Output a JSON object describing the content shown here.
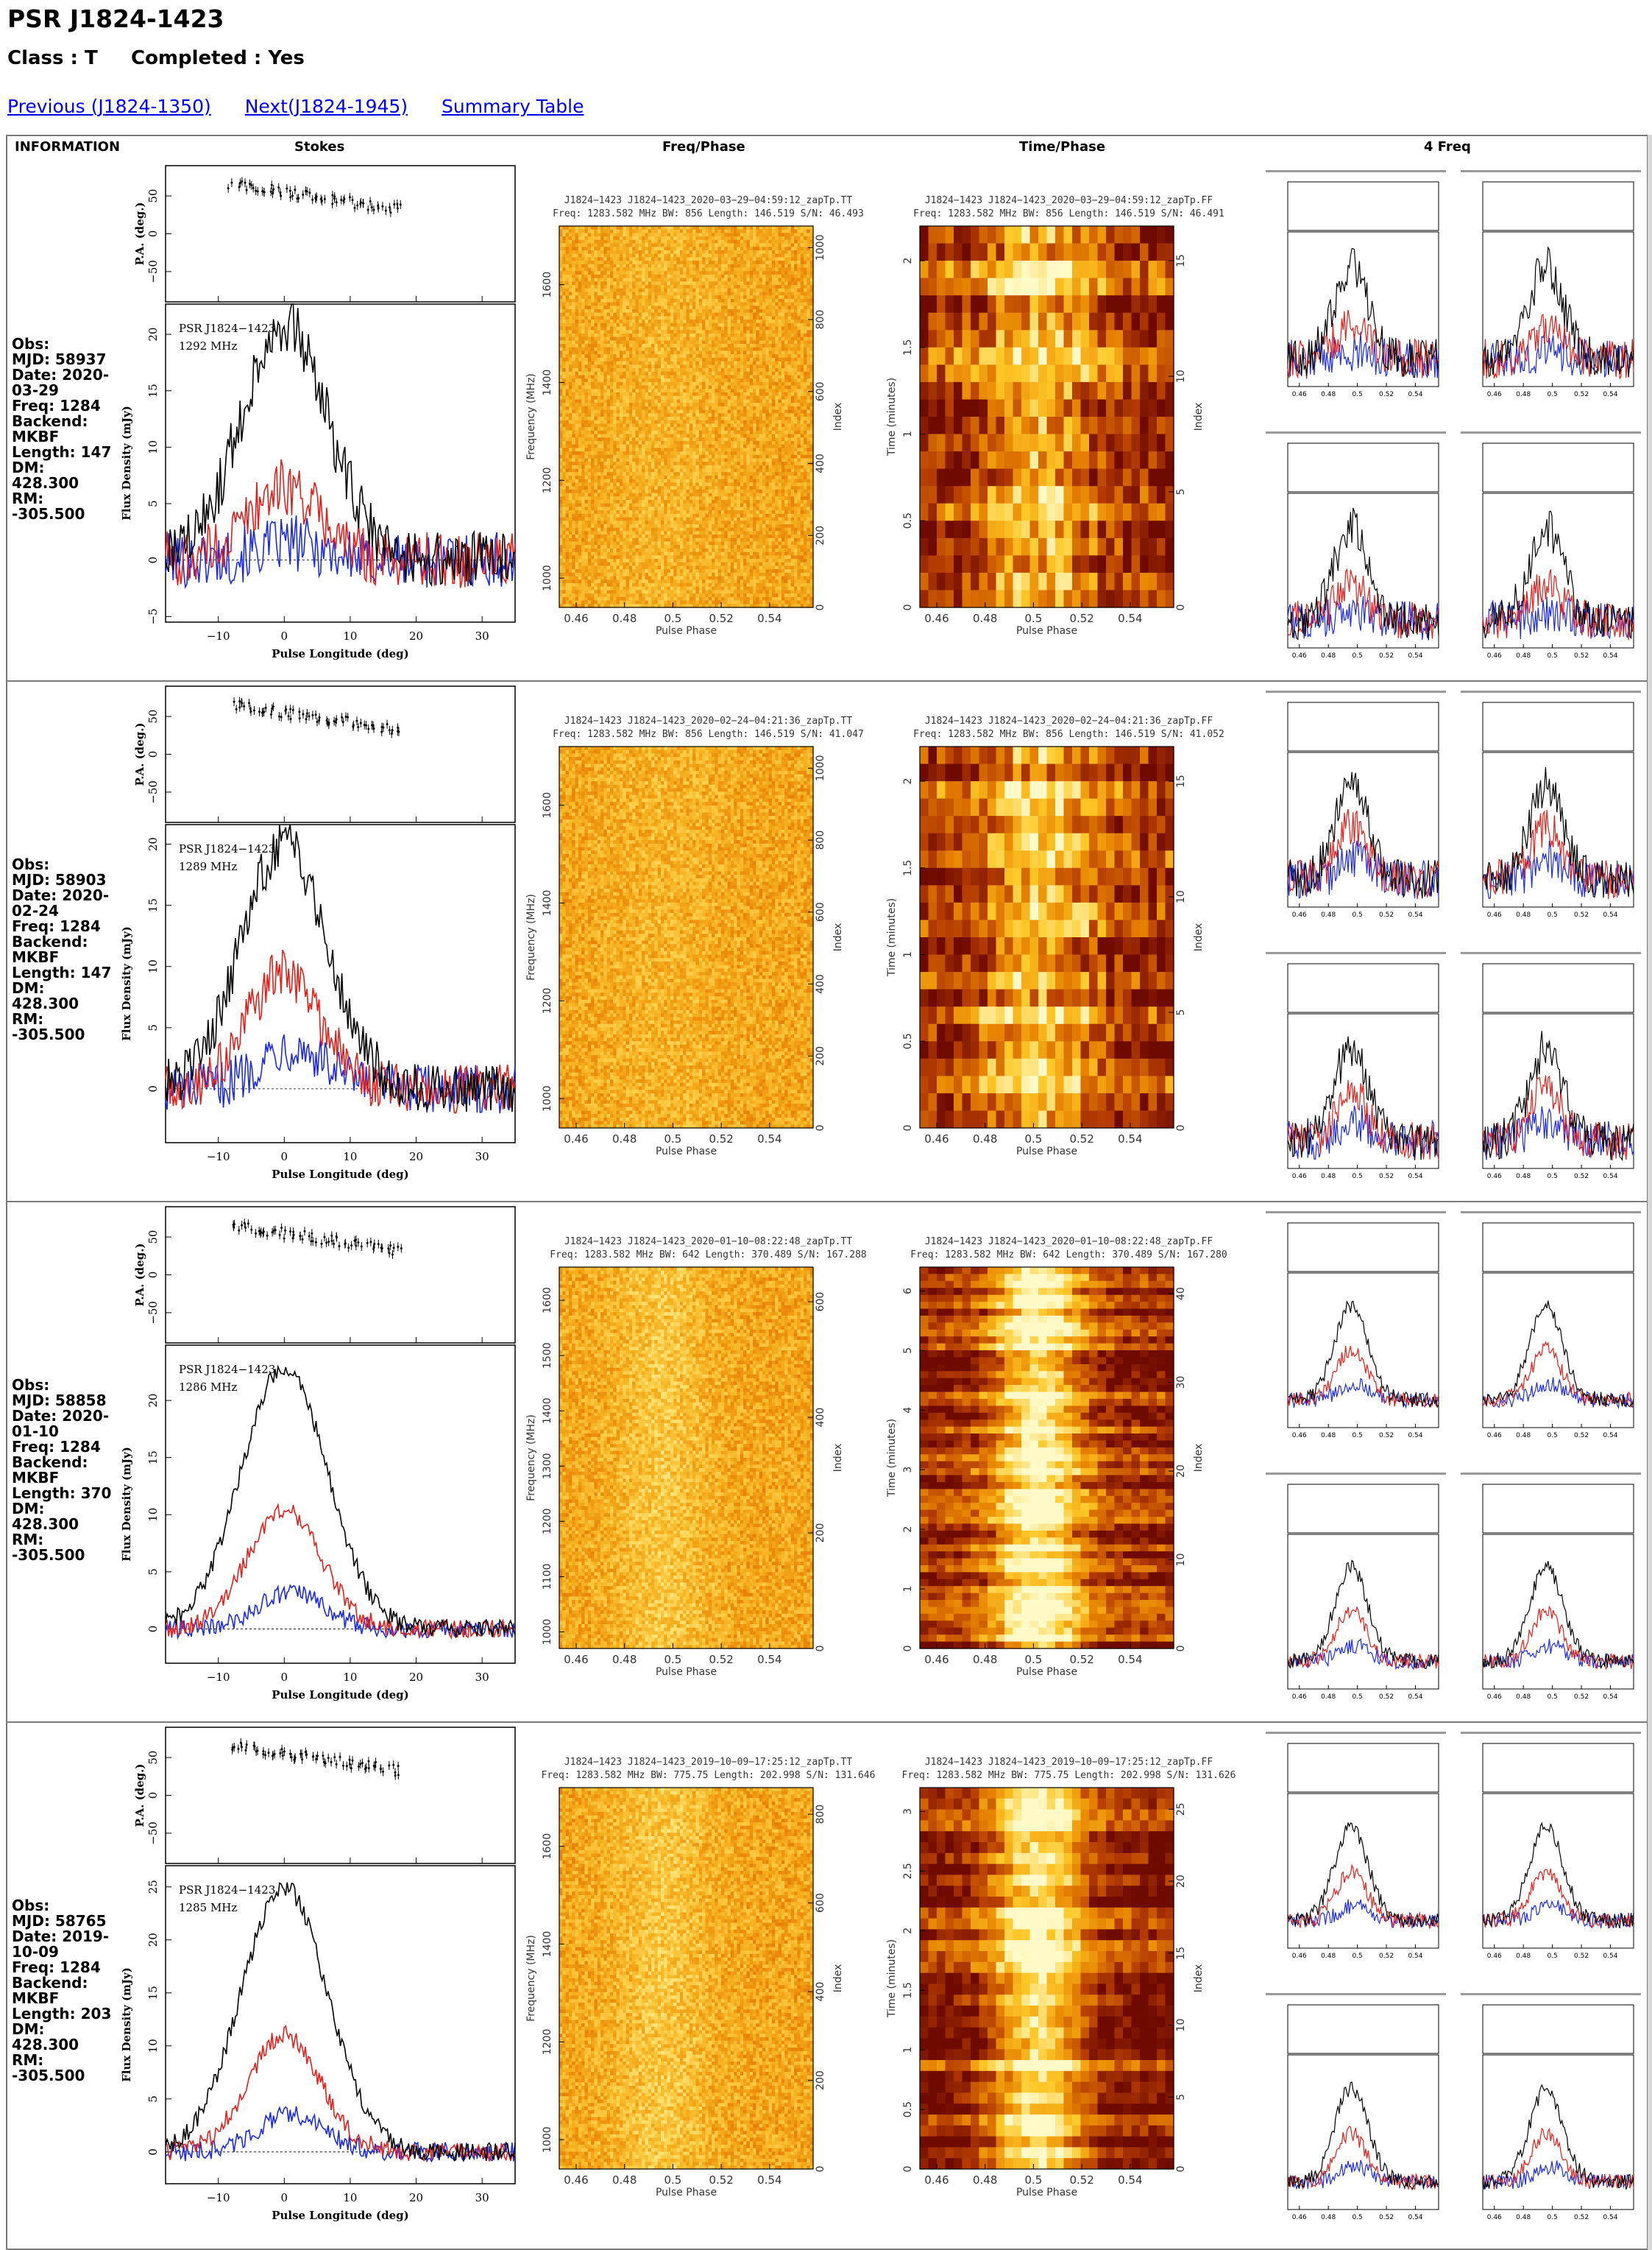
{
  "page": {
    "title": "PSR J1824-1423",
    "class_line": "Class : T     Completed : Yes",
    "nav": {
      "previous": "Previous (J1824-1350)",
      "next": "Next(J1824-1945)",
      "summary": "Summary Table"
    }
  },
  "table": {
    "headers": {
      "information": "INFORMATION",
      "stokes": "Stokes",
      "freq_phase": "Freq/Phase",
      "time_phase": "Time/Phase",
      "four_freq": "4 Freq"
    },
    "rows": [
      {
        "obs": {
          "label": "Obs:",
          "mjd": "MJD: 58937",
          "date": "Date: 2020-03-29",
          "freq": "Freq: 1284",
          "backend_label": "Backend:",
          "backend": "MKBF",
          "length": "Length: 147",
          "dm": "DM: 428.300",
          "rm": "RM: -305.500"
        },
        "stokes": {
          "psr_label": "PSR J1824−1423",
          "freq_label": "1292 MHz",
          "x_label": "Pulse Longitude (deg)",
          "x_ticks": [
            "−10",
            "0",
            "10",
            "20",
            "30"
          ],
          "flux_label": "Flux Density (mJy)",
          "flux_ticks": [
            "−5",
            "0",
            "5",
            "10",
            "15",
            "20"
          ],
          "pa_label": "P.A. (deg.)",
          "pa_ticks": [
            "−50",
            "0",
            "50"
          ],
          "peak_total": 21,
          "peak_linear": 6.5,
          "peak_circular": 1.5,
          "noise": 2.5
        },
        "freq_phase": {
          "title1": "J1824−1423  J1824−1423_2020−03−29−04:59:12_zapTp.TT",
          "title2": "Freq: 1283.582 MHz BW: 856 Length: 146.519 S/N: 46.493",
          "y_label": "Frequency (MHz)",
          "y_ticks": [
            "1000",
            "1200",
            "1400",
            "1600"
          ],
          "r_label": "Index",
          "r_ticks": [
            "0",
            "200",
            "400",
            "600",
            "800",
            "1000"
          ],
          "x_ticks": [
            "0.46",
            "0.48",
            "0.5",
            "0.52",
            "0.54"
          ],
          "x_label": "Pulse Phase"
        },
        "time_phase": {
          "title1": "J1824−1423  J1824−1423_2020−03−29−04:59:12_zapTp.FF",
          "title2": "Freq: 1283.582 MHz BW: 856 Length: 146.519 S/N: 46.491",
          "y_label": "Time (minutes)",
          "y_ticks": [
            "0",
            "0.5",
            "1",
            "1.5",
            "2"
          ],
          "r_label": "Index",
          "r_ticks": [
            "0",
            "5",
            "10",
            "15"
          ],
          "x_ticks": [
            "0.46",
            "0.48",
            "0.5",
            "0.52",
            "0.54"
          ],
          "x_label": "Pulse Phase"
        },
        "four_freq": {
          "x_ticks": [
            "0.46",
            "0.48",
            "0.5",
            "0.52",
            "0.54"
          ]
        }
      },
      {
        "obs": {
          "label": "Obs:",
          "mjd": "MJD: 58903",
          "date": "Date: 2020-02-24",
          "freq": "Freq: 1284",
          "backend_label": "Backend:",
          "backend": "MKBF",
          "length": "Length: 147",
          "dm": "DM: 428.300",
          "rm": "RM: -305.500"
        },
        "stokes": {
          "psr_label": "PSR J1824−1423",
          "freq_label": "1289 MHz",
          "x_label": "Pulse Longitude (deg)",
          "x_ticks": [
            "−10",
            "0",
            "10",
            "20",
            "30"
          ],
          "flux_label": "Flux Density (mJy)",
          "flux_ticks": [
            "0",
            "5",
            "10",
            "15",
            "20"
          ],
          "pa_label": "P.A. (deg.)",
          "pa_ticks": [
            "−50",
            "0",
            "50"
          ],
          "peak_total": 20,
          "peak_linear": 9.5,
          "peak_circular": 3.5,
          "noise": 2.0
        },
        "freq_phase": {
          "title1": "J1824−1423  J1824−1423_2020−02−24−04:21:36_zapTp.TT",
          "title2": "Freq: 1283.582 MHz BW: 856 Length: 146.519 S/N: 41.047",
          "y_label": "Frequency (MHz)",
          "y_ticks": [
            "1000",
            "1200",
            "1400",
            "1600"
          ],
          "r_label": "Index",
          "r_ticks": [
            "0",
            "200",
            "400",
            "600",
            "800",
            "1000"
          ],
          "x_ticks": [
            "0.46",
            "0.48",
            "0.5",
            "0.52",
            "0.54"
          ],
          "x_label": "Pulse Phase"
        },
        "time_phase": {
          "title1": "J1824−1423  J1824−1423_2020−02−24−04:21:36_zapTp.FF",
          "title2": "Freq: 1283.582 MHz BW: 856 Length: 146.519 S/N: 41.052",
          "y_label": "Time (minutes)",
          "y_ticks": [
            "0",
            "0.5",
            "1",
            "1.5",
            "2"
          ],
          "r_label": "Index",
          "r_ticks": [
            "0",
            "5",
            "10",
            "15"
          ],
          "x_ticks": [
            "0.46",
            "0.48",
            "0.5",
            "0.52",
            "0.54"
          ],
          "x_label": "Pulse Phase"
        },
        "four_freq": {
          "x_ticks": [
            "0.46",
            "0.48",
            "0.5",
            "0.52",
            "0.54"
          ]
        }
      },
      {
        "obs": {
          "label": "Obs:",
          "mjd": "MJD: 58858",
          "date": "Date: 2020-01-10",
          "freq": "Freq: 1284",
          "backend_label": "Backend:",
          "backend": "MKBF",
          "length": "Length: 370",
          "dm": "DM: 428.300",
          "rm": "RM: -305.500"
        },
        "stokes": {
          "psr_label": "PSR J1824−1423",
          "freq_label": "1286 MHz",
          "x_label": "Pulse Longitude (deg)",
          "x_ticks": [
            "−10",
            "0",
            "10",
            "20",
            "30"
          ],
          "flux_label": "Flux Density (mJy)",
          "flux_ticks": [
            "0",
            "5",
            "10",
            "15",
            "20"
          ],
          "pa_label": "P.A. (deg.)",
          "pa_ticks": [
            "−50",
            "0",
            "50"
          ],
          "peak_total": 23,
          "peak_linear": 10.5,
          "peak_circular": 3.2,
          "noise": 0.8
        },
        "freq_phase": {
          "title1": "J1824−1423  J1824−1423_2020−01−10−08:22:48_zapTp.TT",
          "title2": "Freq: 1283.582 MHz BW: 642 Length: 370.489 S/N: 167.288",
          "y_label": "Frequency (MHz)",
          "y_ticks": [
            "1000",
            "1100",
            "1200",
            "1300",
            "1400",
            "1500",
            "1600"
          ],
          "r_label": "Index",
          "r_ticks": [
            "0",
            "200",
            "400",
            "600"
          ],
          "x_ticks": [
            "0.46",
            "0.48",
            "0.5",
            "0.52",
            "0.54"
          ],
          "x_label": "Pulse Phase"
        },
        "time_phase": {
          "title1": "J1824−1423  J1824−1423_2020−01−10−08:22:48_zapTp.FF",
          "title2": "Freq: 1283.582 MHz BW: 642 Length: 370.489 S/N: 167.280",
          "y_label": "Time (minutes)",
          "y_ticks": [
            "0",
            "1",
            "2",
            "3",
            "4",
            "5",
            "6"
          ],
          "r_label": "Index",
          "r_ticks": [
            "0",
            "10",
            "20",
            "30",
            "40"
          ],
          "x_ticks": [
            "0.46",
            "0.48",
            "0.5",
            "0.52",
            "0.54"
          ],
          "x_label": "Pulse Phase"
        },
        "four_freq": {
          "x_ticks": [
            "0.46",
            "0.48",
            "0.5",
            "0.52",
            "0.54"
          ]
        }
      },
      {
        "obs": {
          "label": "Obs:",
          "mjd": "MJD: 58765",
          "date": "Date: 2019-10-09",
          "freq": "Freq: 1284",
          "backend_label": "Backend:",
          "backend": "MKBF",
          "length": "Length: 203",
          "dm": "DM: 428.300",
          "rm": "RM: -305.500"
        },
        "stokes": {
          "psr_label": "PSR J1824−1423",
          "freq_label": "1285 MHz",
          "x_label": "Pulse Longitude (deg)",
          "x_ticks": [
            "−10",
            "0",
            "10",
            "20",
            "30"
          ],
          "flux_label": "Flux Density (mJy)",
          "flux_ticks": [
            "0",
            "5",
            "10",
            "15",
            "20",
            "25"
          ],
          "pa_label": "P.A. (deg.)",
          "pa_ticks": [
            "−50",
            "0",
            "50"
          ],
          "peak_total": 25,
          "peak_linear": 11,
          "peak_circular": 3.5,
          "noise": 0.9
        },
        "freq_phase": {
          "title1": "J1824−1423  J1824−1423_2019−10−09−17:25:12_zapTp.TT",
          "title2": "Freq: 1283.582 MHz BW: 775.75 Length: 202.998 S/N: 131.646",
          "y_label": "Frequency (MHz)",
          "y_ticks": [
            "1000",
            "1200",
            "1400",
            "1600"
          ],
          "r_label": "Index",
          "r_ticks": [
            "0",
            "200",
            "400",
            "600",
            "800"
          ],
          "x_ticks": [
            "0.46",
            "0.48",
            "0.5",
            "0.52",
            "0.54"
          ],
          "x_label": "Pulse Phase"
        },
        "time_phase": {
          "title1": "J1824−1423  J1824−1423_2019−10−09−17:25:12_zapTp.FF",
          "title2": "Freq: 1283.582 MHz BW: 775.75 Length: 202.998 S/N: 131.626",
          "y_label": "Time (minutes)",
          "y_ticks": [
            "0",
            "0.5",
            "1",
            "1.5",
            "2",
            "2.5",
            "3"
          ],
          "r_label": "Index",
          "r_ticks": [
            "0",
            "5",
            "10",
            "15",
            "20",
            "25"
          ],
          "x_ticks": [
            "0.46",
            "0.48",
            "0.5",
            "0.52",
            "0.54"
          ],
          "x_label": "Pulse Phase"
        },
        "four_freq": {
          "x_ticks": [
            "0.46",
            "0.48",
            "0.5",
            "0.52",
            "0.54"
          ]
        }
      }
    ]
  },
  "colors": {
    "link": "#0000ee",
    "total_intensity": "#000000",
    "linear": "#e0201b",
    "circular": "#1c2be0",
    "border": "#7a7a7a"
  }
}
